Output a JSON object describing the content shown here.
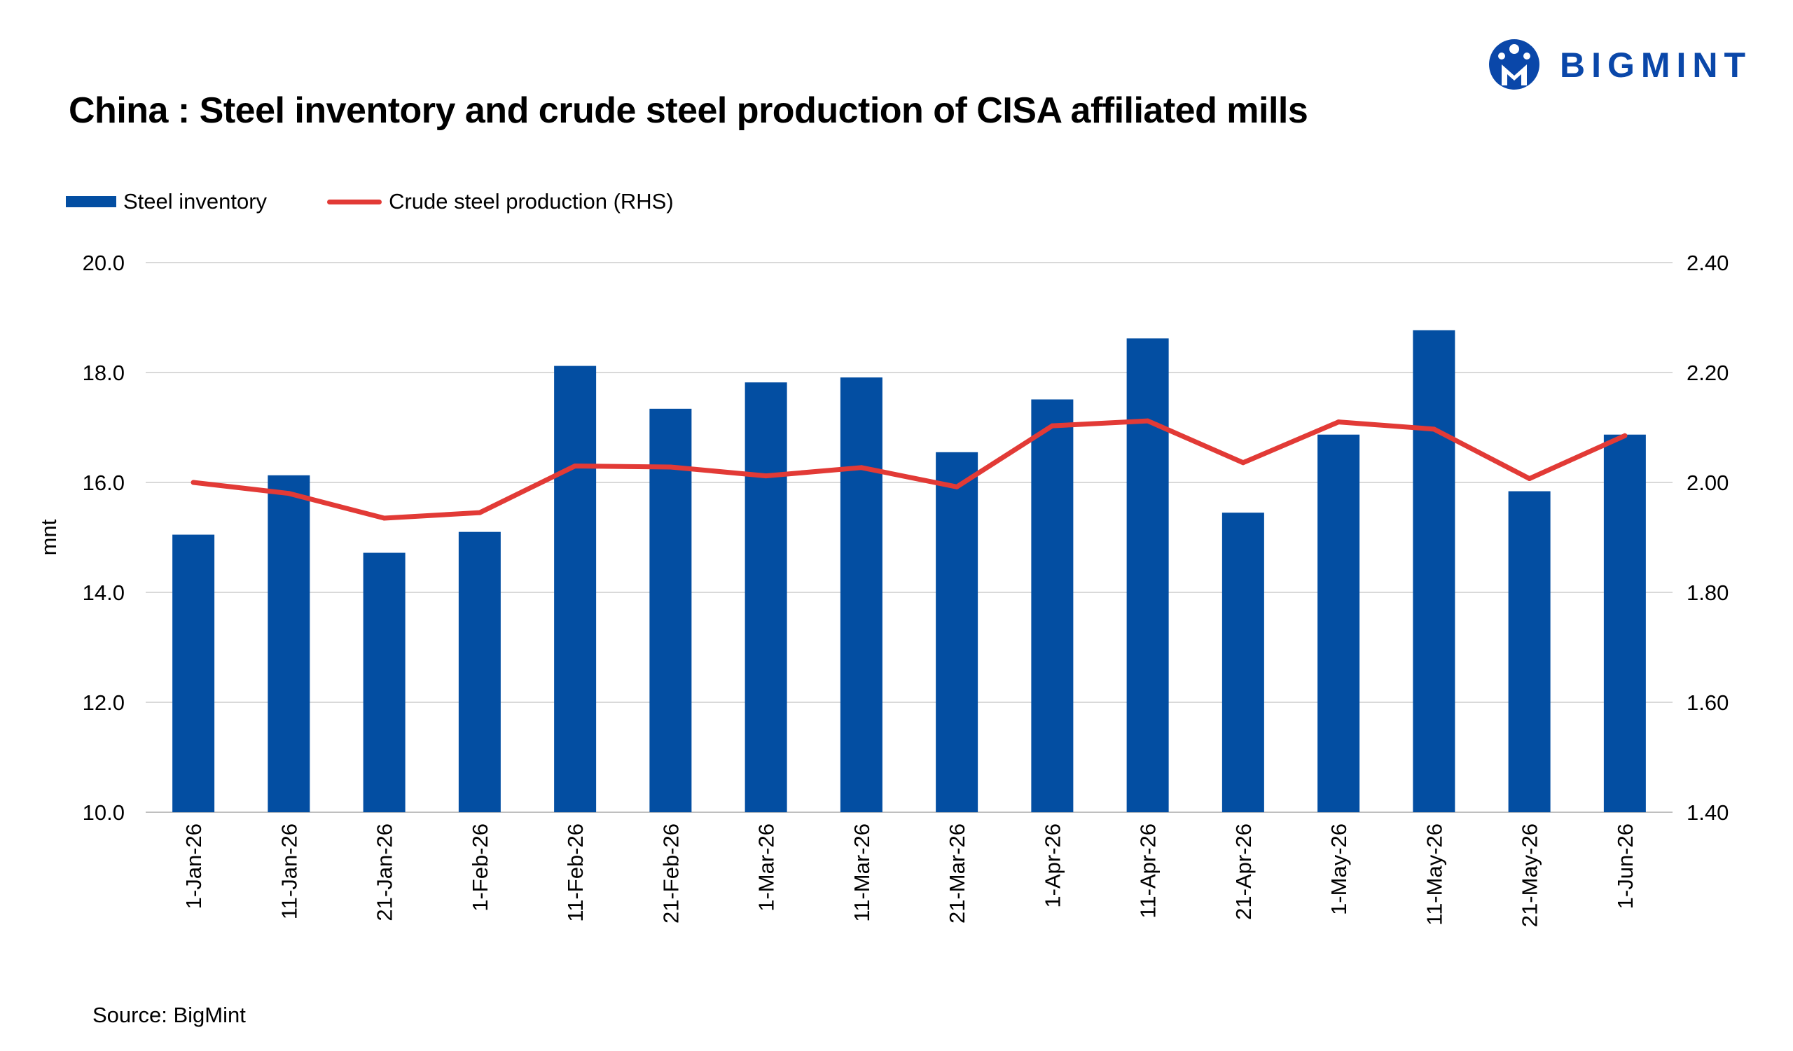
{
  "title": "China : Steel inventory and crude steel production of CISA affiliated mills",
  "logo": {
    "text": "BIGMINT",
    "icon": "bigmint-logo-icon",
    "color": "#0a47a9"
  },
  "source": "Source: BigMint",
  "chart_data": {
    "type": "bar",
    "categories": [
      "1-Jan-26",
      "11-Jan-26",
      "21-Jan-26",
      "1-Feb-26",
      "11-Feb-26",
      "21-Feb-26",
      "1-Mar-26",
      "11-Mar-26",
      "21-Mar-26",
      "1-Apr-26",
      "11-Apr-26",
      "21-Apr-26",
      "1-May-26",
      "11-May-26",
      "21-May-26",
      "1-Jun-26"
    ],
    "series": [
      {
        "name": "Steel inventory",
        "type": "bar",
        "axis": "left",
        "color": "#034ea2",
        "values": [
          15.05,
          16.13,
          14.72,
          15.1,
          18.12,
          17.34,
          17.82,
          17.91,
          16.55,
          17.51,
          18.62,
          15.45,
          16.87,
          18.77,
          15.84,
          16.87
        ]
      },
      {
        "name": "Crude steel production (RHS)",
        "type": "line",
        "axis": "right",
        "color": "#e23a36",
        "values": [
          2.0,
          1.98,
          1.935,
          1.945,
          2.03,
          2.028,
          2.012,
          2.027,
          1.992,
          2.103,
          2.112,
          2.036,
          2.11,
          2.097,
          2.007,
          2.085
        ]
      }
    ],
    "ylabel": "mnt",
    "ylim": [
      10,
      20
    ],
    "yticks": [
      "10.0",
      "12.0",
      "14.0",
      "16.0",
      "18.0",
      "20.0"
    ],
    "y2lim": [
      1.4,
      2.4
    ],
    "y2ticks": [
      "1.40",
      "1.60",
      "1.80",
      "2.00",
      "2.20",
      "2.40"
    ],
    "grid": true,
    "legend": "top-left"
  }
}
